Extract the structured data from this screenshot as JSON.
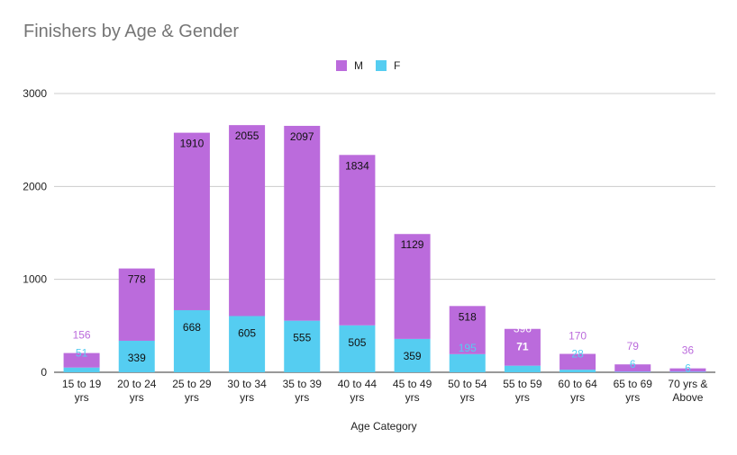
{
  "chart_data": {
    "type": "bar",
    "stacked": true,
    "title": "Finishers by Age & Gender",
    "xlabel": "Age Category",
    "ylabel": "",
    "ylim": [
      0,
      3000
    ],
    "yticks": [
      "0",
      "1000",
      "2000",
      "3000"
    ],
    "grid": true,
    "legend_position": "top",
    "categories": [
      [
        "15 to 19",
        "yrs"
      ],
      [
        "20 to 24",
        "yrs"
      ],
      [
        "25 to 29",
        "yrs"
      ],
      [
        "30 to 34",
        "yrs"
      ],
      [
        "35 to 39",
        "yrs"
      ],
      [
        "40 to 44",
        "yrs"
      ],
      [
        "45 to 49",
        "yrs"
      ],
      [
        "50 to 54",
        "yrs"
      ],
      [
        "55 to 59",
        "yrs"
      ],
      [
        "60 to 64",
        "yrs"
      ],
      [
        "65 to 69",
        "yrs"
      ],
      [
        "70 yrs &",
        "Above"
      ]
    ],
    "series": [
      {
        "name": "F",
        "color": "#55cdf1",
        "values": [
          51,
          339,
          668,
          605,
          555,
          505,
          359,
          195,
          71,
          28,
          6,
          6
        ]
      },
      {
        "name": "M",
        "color": "#bb6bdc",
        "values": [
          156,
          778,
          1910,
          2055,
          2097,
          1834,
          1129,
          518,
          396,
          170,
          79,
          36
        ]
      }
    ],
    "legend_order": [
      "M",
      "F"
    ]
  }
}
